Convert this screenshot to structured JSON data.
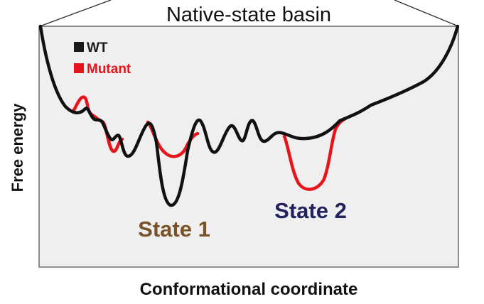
{
  "title": "Native-state basin",
  "legend": {
    "items": [
      {
        "label": "WT",
        "color": "#1a1a1a"
      },
      {
        "label": "Mutant",
        "color": "#e8141c"
      }
    ]
  },
  "axes": {
    "ylabel": "Free energy",
    "xlabel": "Conformational coordinate"
  },
  "states": [
    {
      "label": "State 1",
      "color": "#7a5228"
    },
    {
      "label": "State 2",
      "color": "#23235e"
    }
  ],
  "colors": {
    "panel_bg": "#efefef",
    "panel_border": "#6a6a6a",
    "wt": "#1a1a1a",
    "mutant": "#e8141c"
  }
}
